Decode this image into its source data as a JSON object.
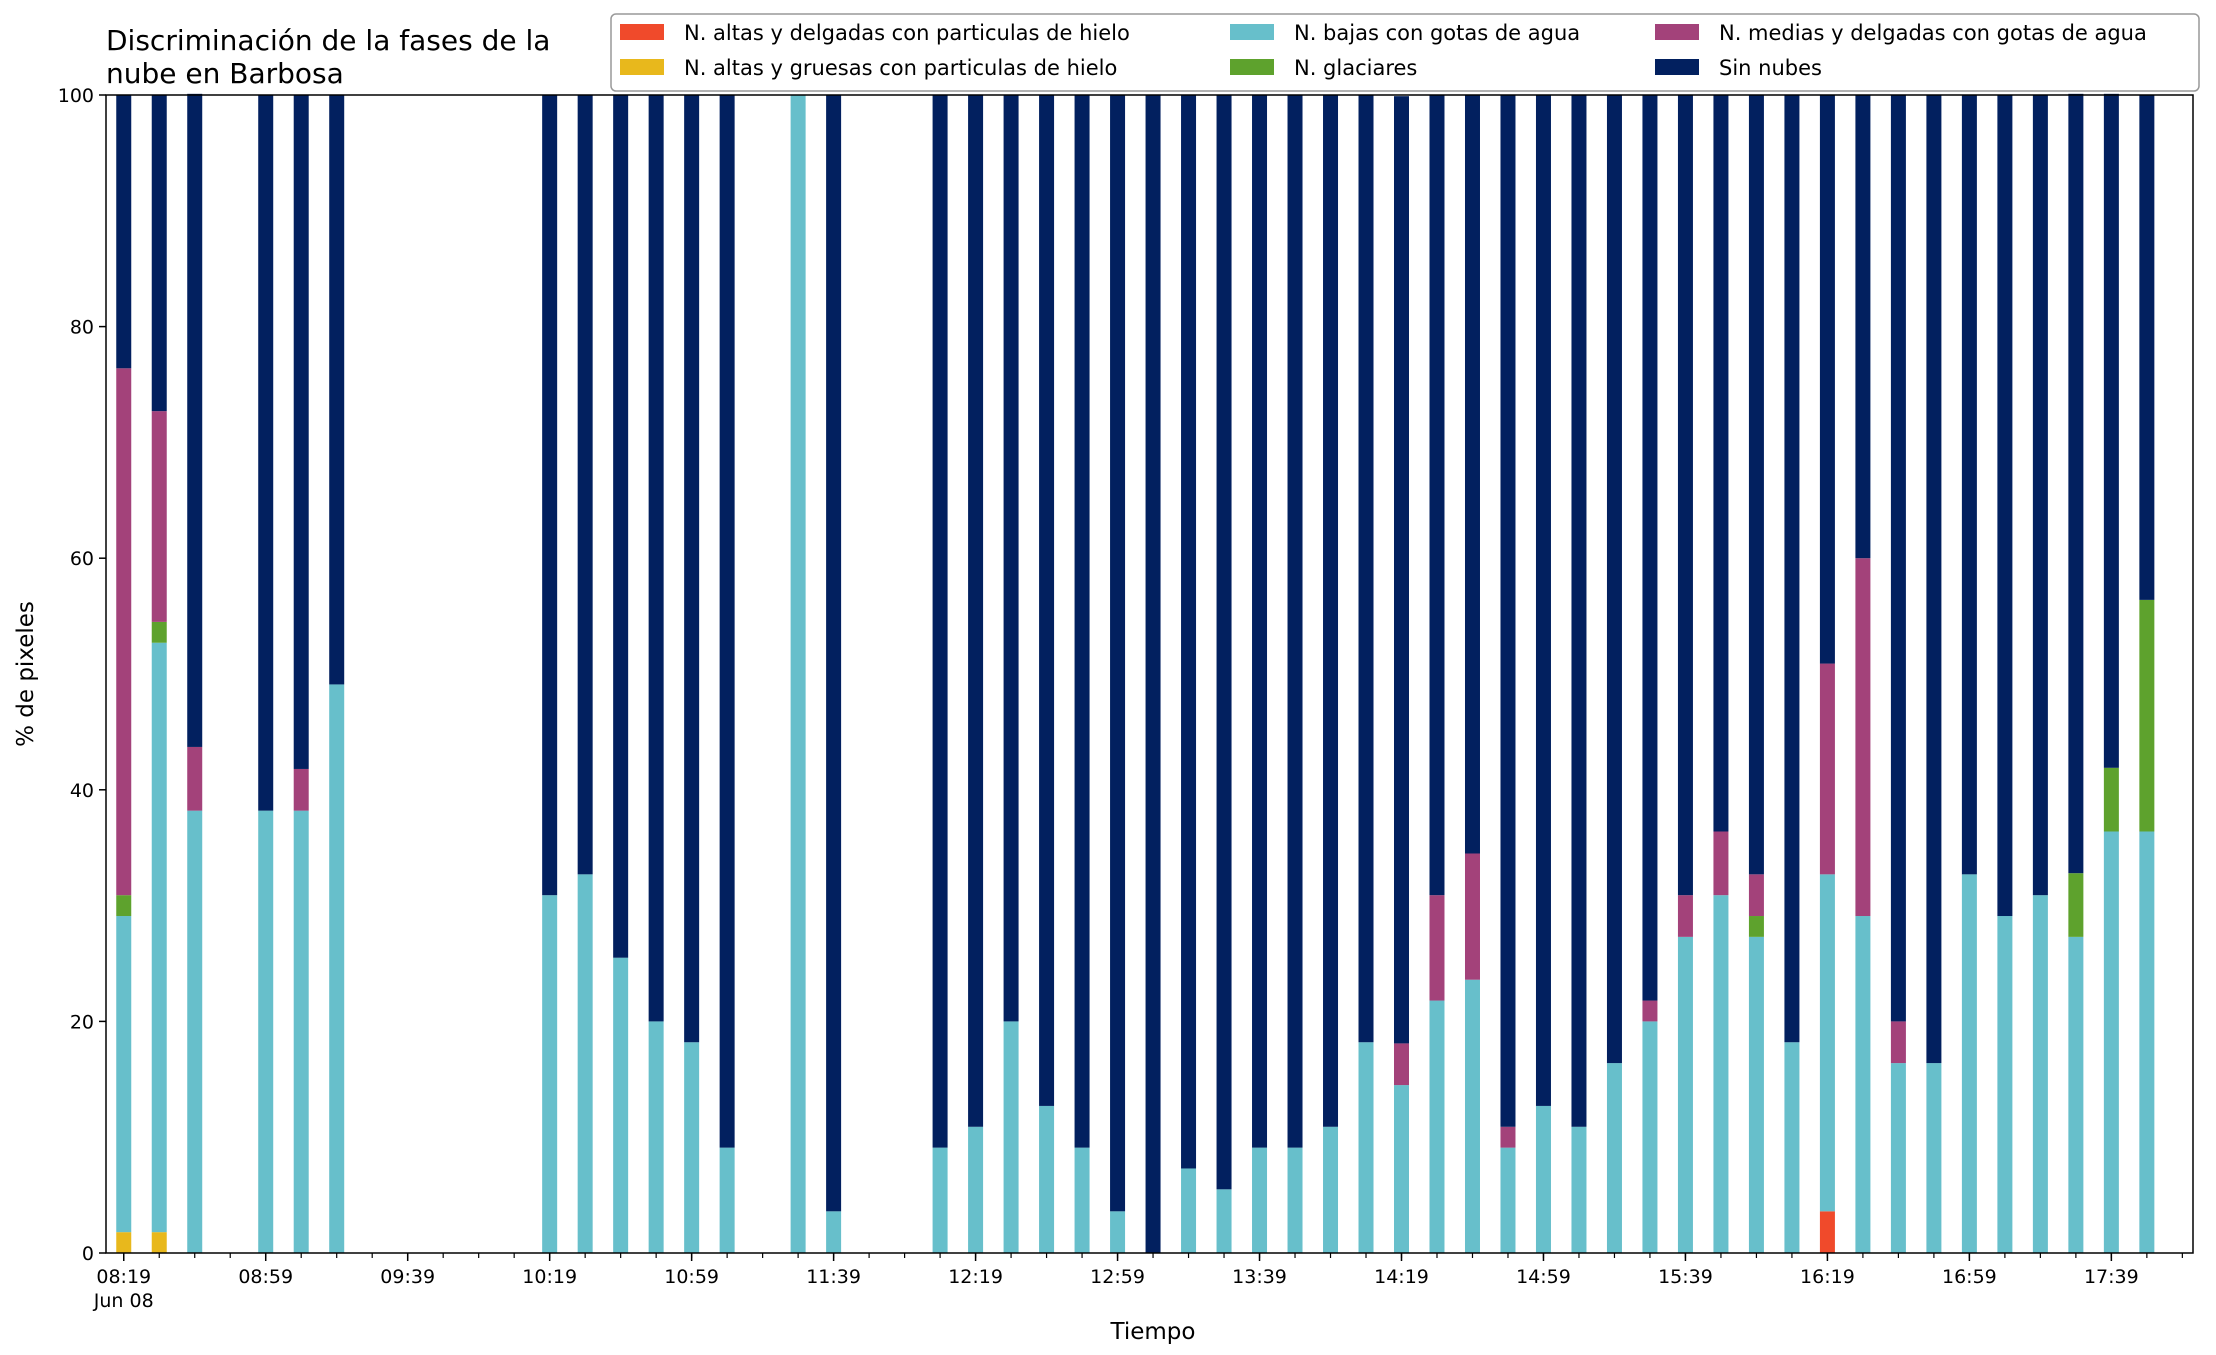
{
  "chart_data": {
    "type": "bar",
    "stacked": true,
    "title_lines": [
      "Discriminación de la fases de la",
      "nube en Barbosa"
    ],
    "xlabel": "Tiempo",
    "ylabel": "% de pixeles",
    "ylim": [
      0,
      100
    ],
    "yticks": [
      0,
      20,
      40,
      60,
      80,
      100
    ],
    "x_range": [
      "08:14",
      "18:02"
    ],
    "x_tick_labels": [
      "08:19",
      "08:59",
      "09:39",
      "10:19",
      "10:59",
      "11:39",
      "12:19",
      "12:59",
      "13:39",
      "14:19",
      "14:59",
      "15:39",
      "16:19",
      "16:59",
      "17:39"
    ],
    "x_date_label": "Jun 08",
    "legend_position": "top-right",
    "legend": [
      {
        "name": "N. altas y delgadas con particulas de hielo",
        "color": "#f04a2b"
      },
      {
        "name": "N. altas y gruesas con particulas de hielo",
        "color": "#e8b81c"
      },
      {
        "name": "N. bajas con gotas de agua",
        "color": "#67bfcb"
      },
      {
        "name": "N. glaciares",
        "color": "#5ea22d"
      },
      {
        "name": "N. medias y delgadas con gotas de agua",
        "color": "#a3427a"
      },
      {
        "name": "Sin nubes",
        "color": "#02205f"
      }
    ],
    "categories": [
      "08:19",
      "08:29",
      "08:39",
      "08:59",
      "09:09",
      "09:19",
      "10:19",
      "10:29",
      "10:39",
      "10:49",
      "10:59",
      "11:09",
      "11:29",
      "11:39",
      "12:09",
      "12:19",
      "12:29",
      "12:39",
      "12:49",
      "12:59",
      "13:09",
      "13:19",
      "13:29",
      "13:39",
      "13:49",
      "13:59",
      "14:09",
      "14:19",
      "14:29",
      "14:39",
      "14:49",
      "14:59",
      "15:09",
      "15:19",
      "15:29",
      "15:39",
      "15:49",
      "15:59",
      "16:09",
      "16:19",
      "16:29",
      "16:39",
      "16:49",
      "16:59",
      "17:09",
      "17:19",
      "17:29",
      "17:39",
      "17:49"
    ],
    "series": [
      {
        "name": "N. altas y delgadas con particulas de hielo",
        "color": "#f04a2b",
        "values": [
          0,
          0,
          0,
          0,
          0,
          0,
          0,
          0,
          0,
          0,
          0,
          0,
          0,
          0,
          0,
          0,
          0,
          0,
          0,
          0,
          0,
          0,
          0,
          0,
          0,
          0,
          0,
          0,
          0,
          0,
          0,
          0,
          0,
          0,
          0,
          0,
          0,
          0,
          0,
          3.6,
          0,
          0,
          0,
          0,
          0,
          0,
          0,
          0,
          0
        ]
      },
      {
        "name": "N. altas y gruesas con particulas de hielo",
        "color": "#e8b81c",
        "values": [
          1.8,
          1.8,
          0,
          0,
          0,
          0,
          0,
          0,
          0,
          0,
          0,
          0,
          0,
          0,
          0,
          0,
          0,
          0,
          0,
          0,
          0,
          0,
          0,
          0,
          0,
          0,
          0,
          0,
          0,
          0,
          0,
          0,
          0,
          0,
          0,
          0,
          0,
          0,
          0,
          0,
          0,
          0,
          0,
          0,
          0,
          0,
          0,
          0,
          0
        ]
      },
      {
        "name": "N. bajas con gotas de agua",
        "color": "#67bfcb",
        "values": [
          27.3,
          50.9,
          38.2,
          38.2,
          38.2,
          49.1,
          30.9,
          32.7,
          25.5,
          20.0,
          18.2,
          9.1,
          100,
          3.6,
          9.1,
          10.9,
          20.0,
          12.7,
          9.1,
          3.6,
          0,
          7.3,
          5.5,
          9.1,
          9.1,
          10.9,
          18.2,
          14.5,
          21.8,
          23.6,
          9.1,
          12.7,
          10.9,
          16.4,
          20.0,
          27.3,
          30.9,
          27.3,
          18.2,
          29.1,
          29.1,
          16.4,
          16.4,
          32.7,
          29.1,
          30.9,
          27.3,
          36.4,
          36.4
        ]
      },
      {
        "name": "N. glaciares",
        "color": "#5ea22d",
        "values": [
          1.8,
          1.8,
          0,
          0,
          0,
          0,
          0,
          0,
          0,
          0,
          0,
          0,
          0,
          0,
          0,
          0,
          0,
          0,
          0,
          0,
          0,
          0,
          0,
          0,
          0,
          0,
          0,
          0,
          0,
          0,
          0,
          0,
          0,
          0,
          0,
          0,
          0,
          1.8,
          0,
          0,
          0,
          0,
          0,
          0,
          0,
          0,
          5.5,
          5.5,
          20.0
        ]
      },
      {
        "name": "N. medias y delgadas con gotas de agua",
        "color": "#a3427a",
        "values": [
          45.5,
          18.2,
          5.5,
          0,
          3.6,
          0,
          0,
          0,
          0,
          0,
          0,
          0,
          0,
          0,
          0,
          0,
          0,
          0,
          0,
          0,
          0,
          0,
          0,
          0,
          0,
          0,
          0,
          3.6,
          9.1,
          10.9,
          1.8,
          0,
          0,
          0,
          1.8,
          3.6,
          5.5,
          3.6,
          0,
          18.2,
          30.9,
          3.6,
          0,
          0,
          0,
          0,
          0,
          0,
          0
        ]
      },
      {
        "name": "Sin nubes",
        "color": "#02205f",
        "values": [
          23.6,
          27.3,
          56.4,
          61.8,
          58.2,
          50.9,
          69.1,
          67.3,
          74.5,
          80.0,
          81.8,
          90.9,
          0,
          96.4,
          90.9,
          89.1,
          80.0,
          87.3,
          90.9,
          96.4,
          100,
          92.7,
          94.5,
          90.9,
          90.9,
          89.1,
          81.8,
          81.8,
          69.1,
          65.5,
          89.1,
          87.3,
          89.1,
          83.6,
          78.2,
          69.1,
          63.6,
          67.3,
          81.8,
          49.1,
          40.0,
          80.0,
          83.6,
          67.3,
          70.9,
          69.1,
          67.3,
          58.2,
          43.6
        ]
      }
    ]
  }
}
